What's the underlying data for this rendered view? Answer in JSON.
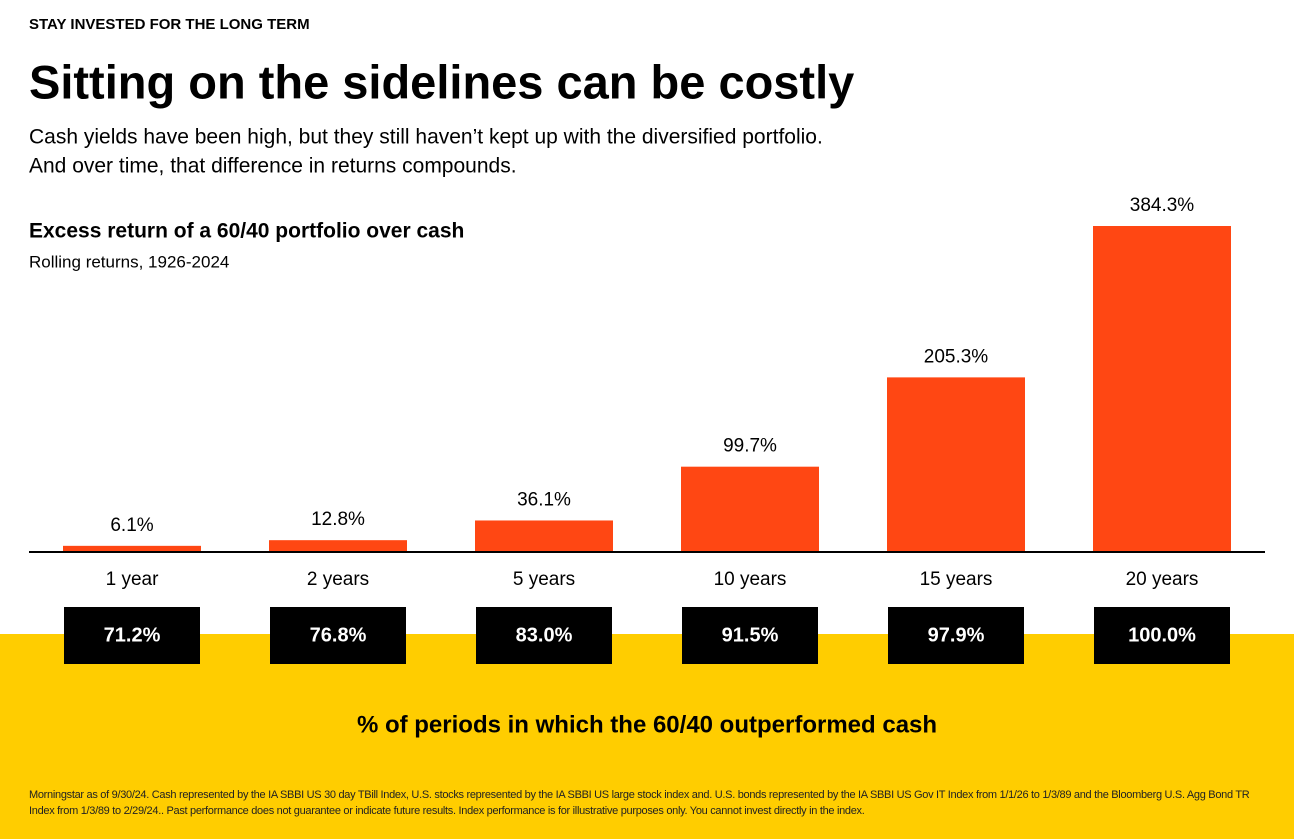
{
  "chart_data": {
    "type": "bar",
    "kicker": "STAY INVESTED FOR THE LONG TERM",
    "title": "Sitting on the sidelines can be costly",
    "subtitle": [
      "Cash yields have been high, but they still haven’t kept up with the diversified portfolio.",
      "And over time, that difference in returns compounds."
    ],
    "chart_title": "Excess return of a 60/40 portfolio over cash",
    "chart_subtitle": "Rolling returns, 1926-2024",
    "categories": [
      "1 year",
      "2 years",
      "5 years",
      "10 years",
      "15 years",
      "20 years"
    ],
    "values": [
      6.1,
      12.8,
      36.1,
      99.7,
      205.3,
      384.3
    ],
    "value_labels": [
      "6.1%",
      "12.8%",
      "36.1%",
      "99.7%",
      "205.3%",
      "384.3%"
    ],
    "color": "#ff4713",
    "outperformance": {
      "title": "% of periods in which the 60/40 outperformed cash",
      "values": [
        71.2,
        76.8,
        83.0,
        91.5,
        97.9,
        100.0
      ],
      "value_labels": [
        "71.2%",
        "76.8%",
        "83.0%",
        "91.5%",
        "97.9%",
        "100.0%"
      ]
    },
    "footnote": "Morningstar as of 9/30/24. Cash represented by the IA SBBI US 30 day TBill  Index, U.S. stocks represented by the IA SBBI US large stock index and. U.S. bonds represented by the IA SBBI US Gov IT Index from 1/1/26 to 1/3/89 and the Bloomberg U.S. Agg Bond TR Index from 1/3/89 to 2/29/24.. Past performance does not guarantee or indicate future results. Index performance is for illustrative purposes only. You cannot invest directly in the index."
  }
}
